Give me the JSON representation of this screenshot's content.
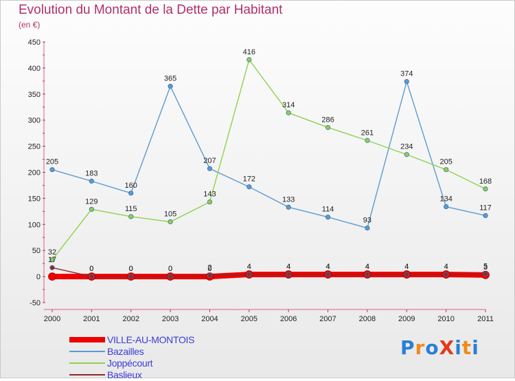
{
  "title": "Evolution du Montant de la Dette par Habitant",
  "unit_label": "(en €)",
  "logo_text": "ProXiti",
  "logo_colors": [
    "#2a7fd4",
    "#f08a1a",
    "#2a7fd4",
    "#e23a1a",
    "#2a7fd4",
    "#f08a1a",
    "#2a7fd4"
  ],
  "chart_data": {
    "type": "line",
    "x": [
      "2000",
      "2001",
      "2002",
      "2003",
      "2004",
      "2005",
      "2006",
      "2007",
      "2008",
      "2009",
      "2010",
      "2011"
    ],
    "ylim": [
      -50,
      450
    ],
    "yticks": [
      -50,
      0,
      50,
      100,
      150,
      200,
      250,
      300,
      350,
      400,
      450
    ],
    "grid": false,
    "legend_position": "bottom-left",
    "series": [
      {
        "name": "VILLE-AU-MONTOIS",
        "color": "#ee0000",
        "values": [
          0,
          0,
          0,
          0,
          0,
          4,
          4,
          4,
          4,
          4,
          4,
          3
        ],
        "labels": [
          "",
          "0",
          "0",
          "0",
          "0",
          "4",
          "4",
          "4",
          "4",
          "4",
          "4",
          "3"
        ]
      },
      {
        "name": "Bazailles",
        "color": "#5b9bd1",
        "values": [
          205,
          183,
          160,
          365,
          207,
          172,
          133,
          114,
          93,
          374,
          134,
          117
        ],
        "labels": [
          "205",
          "183",
          "160",
          "365",
          "207",
          "172",
          "133",
          "114",
          "93",
          "374",
          "134",
          "117"
        ]
      },
      {
        "name": "Joppécourt",
        "color": "#8fd14f",
        "values": [
          32,
          129,
          115,
          105,
          143,
          416,
          314,
          286,
          261,
          234,
          205,
          168
        ],
        "labels": [
          "32",
          "129",
          "115",
          "105",
          "143",
          "416",
          "314",
          "286",
          "261",
          "234",
          "205",
          "168"
        ]
      },
      {
        "name": "Baslieux",
        "color": "#8a2b2b",
        "values": [
          17,
          0,
          0,
          0,
          2,
          4,
          4,
          4,
          4,
          4,
          4,
          5
        ],
        "labels": [
          "17",
          "0",
          "0",
          "0",
          "2",
          "4",
          "4",
          "4",
          "4",
          "4",
          "4",
          "5"
        ]
      }
    ]
  }
}
